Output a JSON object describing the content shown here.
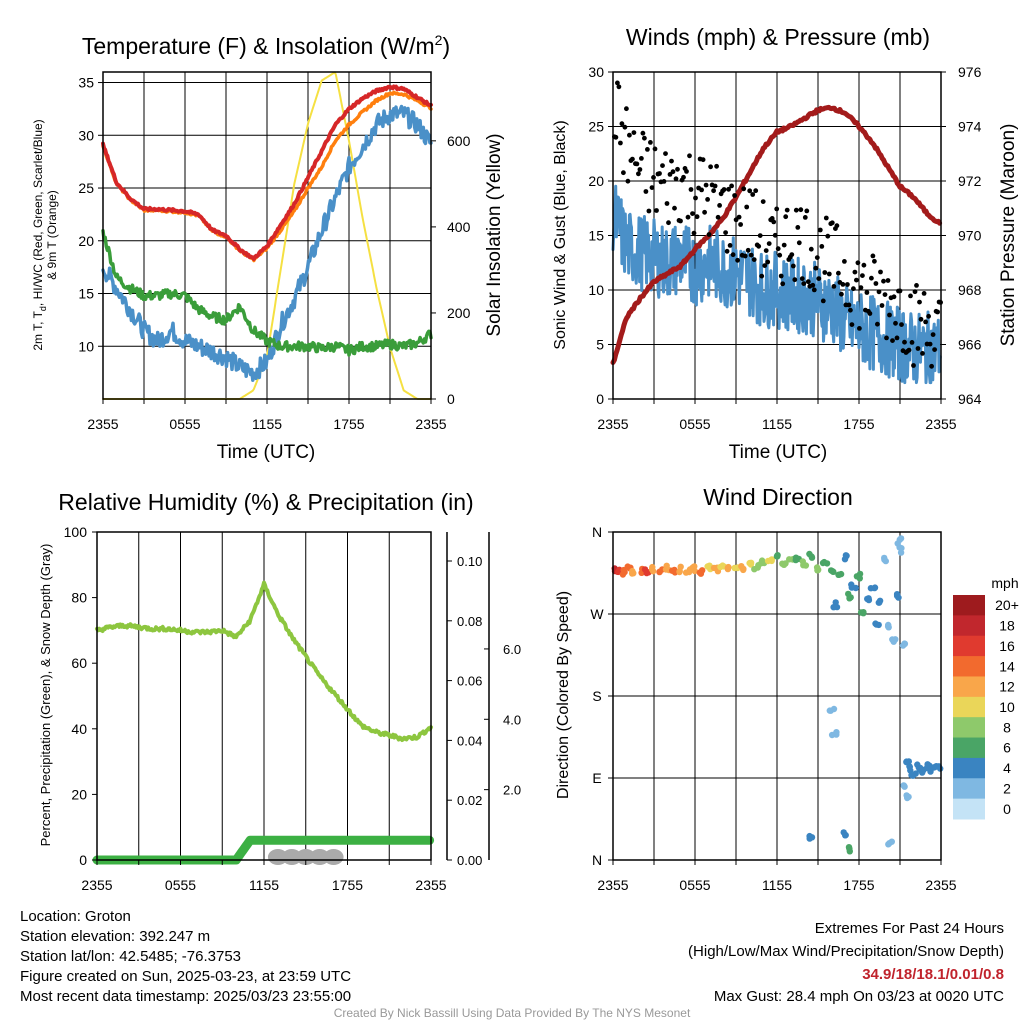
{
  "panels": {
    "temperature": {
      "title_main": "Temperature (F) & Insolation (W/m",
      "title_sup": "2",
      "title_end": ")",
      "ylabel_line1": "2m T, T",
      "ylabel_sub": "d",
      "ylabel_line1_end": ", HI/WC (Red, Green, Scarlet/Blue)",
      "ylabel_line2": "& 9m T (Orange)",
      "y2label": "Solar Insolation (Yellow)",
      "xlabel": "Time (UTC)"
    },
    "winds": {
      "title": "Winds (mph) & Pressure (mb)",
      "ylabel": "Sonic Wind & Gust (Blue, Black)",
      "y2label": "Station Pressure (Maroon)",
      "xlabel": "Time (UTC)"
    },
    "humidity": {
      "title": "Relative Humidity (%) & Precipitation (in)",
      "ylabel": "Percent, Precipitation (Green), & Snow Depth (Gray)"
    },
    "direction": {
      "title": "Wind Direction",
      "ylabel": "Direction (Colored By Speed)",
      "legend_title": "mph"
    }
  },
  "chart_data": [
    {
      "id": "temperature",
      "type": "line",
      "x_ticks": [
        "2355",
        "0555",
        "1155",
        "1755",
        "2355"
      ],
      "ylim": [
        5,
        36
      ],
      "y_ticks": [
        10,
        15,
        20,
        25,
        30,
        35
      ],
      "y2lim": [
        0,
        760
      ],
      "y2_ticks": [
        0,
        200,
        400,
        600
      ],
      "x": [
        0,
        1,
        2,
        3,
        4,
        5,
        6,
        7,
        8,
        9,
        10,
        11,
        12,
        13,
        14,
        15,
        16,
        17,
        18,
        19,
        20,
        21,
        22,
        23,
        24
      ],
      "series": [
        {
          "name": "2m T",
          "color": "#d62728",
          "axis": "left",
          "values": [
            29.1,
            25.5,
            24.0,
            23.0,
            23.0,
            22.9,
            22.8,
            22.5,
            21.0,
            20.5,
            19.2,
            18.3,
            19.5,
            21.5,
            23.5,
            26.0,
            28.5,
            31.0,
            32.5,
            33.5,
            34.2,
            34.6,
            34.4,
            33.6,
            32.8
          ]
        },
        {
          "name": "9m T",
          "color": "#ff7f0e",
          "axis": "left",
          "values": [
            29.0,
            25.4,
            23.9,
            22.9,
            22.9,
            22.8,
            22.7,
            22.4,
            20.9,
            20.4,
            19.1,
            18.2,
            19.3,
            21.0,
            22.8,
            25.0,
            27.0,
            29.5,
            31.0,
            32.2,
            33.3,
            34.0,
            33.9,
            33.3,
            32.6
          ]
        },
        {
          "name": "Td",
          "color": "#3a9d3a",
          "axis": "left",
          "values": [
            20.8,
            16.5,
            15.5,
            14.8,
            14.8,
            15.0,
            14.8,
            13.5,
            12.8,
            12.5,
            13.8,
            11.5,
            10.5,
            10.0,
            10.0,
            10.0,
            9.8,
            10.0,
            9.6,
            10.0,
            10.0,
            10.2,
            10.0,
            10.3,
            11.2
          ]
        },
        {
          "name": "WC",
          "color": "#4a90c8",
          "axis": "left",
          "values": [
            17.5,
            15.5,
            13.5,
            11.5,
            10.5,
            11.5,
            10.5,
            10.0,
            9.5,
            9.0,
            8.0,
            7.5,
            8.5,
            12.0,
            14.5,
            17.5,
            21.0,
            24.0,
            27.0,
            29.0,
            31.0,
            32.0,
            32.0,
            31.0,
            29.2
          ]
        },
        {
          "name": "Insolation",
          "color": "#f5e042",
          "axis": "right",
          "values": [
            0,
            0,
            0,
            0,
            0,
            0,
            0,
            0,
            0,
            0,
            0,
            20,
            100,
            300,
            500,
            640,
            740,
            760,
            600,
            420,
            260,
            120,
            20,
            0,
            0
          ]
        }
      ]
    },
    {
      "id": "winds",
      "type": "line",
      "x_ticks": [
        "2355",
        "0555",
        "1155",
        "1755",
        "2355"
      ],
      "ylim": [
        0,
        30
      ],
      "y_ticks": [
        0,
        5,
        10,
        15,
        20,
        25,
        30
      ],
      "y2lim": [
        964,
        976
      ],
      "y2_ticks": [
        964,
        966,
        968,
        970,
        972,
        974,
        976
      ],
      "x": [
        0,
        1,
        2,
        3,
        4,
        5,
        6,
        7,
        8,
        9,
        10,
        11,
        12,
        13,
        14,
        15,
        16,
        17,
        18,
        19,
        20,
        21,
        22,
        23,
        24
      ],
      "series": [
        {
          "name": "Sonic Wind",
          "color": "#4a90c8",
          "axis": "left",
          "values": [
            17.0,
            14.0,
            13.5,
            13.0,
            12.5,
            13.0,
            12.0,
            12.5,
            12.0,
            11.5,
            11.0,
            10.0,
            10.0,
            9.5,
            9.5,
            9.0,
            8.5,
            7.0,
            6.5,
            6.0,
            5.5,
            5.0,
            4.5,
            4.5,
            4.5
          ]
        },
        {
          "name": "Pressure",
          "color": "#a31b1b",
          "axis": "right",
          "values": [
            965.3,
            967.0,
            967.7,
            968.3,
            968.6,
            968.9,
            969.5,
            970.0,
            970.6,
            971.4,
            972.3,
            973.2,
            973.8,
            974.0,
            974.3,
            974.6,
            974.7,
            974.5,
            974.0,
            973.4,
            972.6,
            971.8,
            971.4,
            970.8,
            970.4
          ]
        },
        {
          "name": "Gust",
          "color": "#000000",
          "axis": "left",
          "scatter": true,
          "values": [
            27.5,
            23.0,
            21.0,
            20.0,
            19.5,
            20.0,
            19.0,
            18.5,
            17.5,
            16.0,
            16.0,
            14.5,
            13.5,
            15.0,
            14.5,
            13.0,
            12.5,
            11.5,
            10.0,
            9.5,
            9.0,
            8.5,
            7.0,
            6.5,
            6.0
          ]
        }
      ]
    },
    {
      "id": "humidity",
      "type": "line",
      "x_ticks": [
        "2355",
        "0555",
        "1155",
        "1755",
        "2355"
      ],
      "ylim": [
        0,
        100
      ],
      "y_ticks": [
        0,
        20,
        40,
        60,
        80,
        100
      ],
      "y2_ticks": [
        "0.00",
        "0.02",
        "0.04",
        "0.06",
        "0.08",
        "0.10"
      ],
      "y2lim": [
        0,
        0.1
      ],
      "y3_ticks": [
        "2.0",
        "4.0",
        "6.0"
      ],
      "x": [
        0,
        1,
        2,
        3,
        4,
        5,
        6,
        7,
        8,
        9,
        10,
        11,
        12,
        13,
        14,
        15,
        16,
        17,
        18,
        19,
        20,
        21,
        22,
        23,
        24
      ],
      "series": [
        {
          "name": "Relative Humidity",
          "color": "#8dc63f",
          "axis": "left",
          "values": [
            70.0,
            71.0,
            71.5,
            71.0,
            70.5,
            70.5,
            70.0,
            69.5,
            69.5,
            70.0,
            68.0,
            73.0,
            84.0,
            75.0,
            68.0,
            62.0,
            56.0,
            51.0,
            46.0,
            41.0,
            39.0,
            38.0,
            37.0,
            37.5,
            40.5
          ]
        },
        {
          "name": "Precipitation",
          "color": "#3cb043",
          "axis": "right",
          "values": [
            0,
            0,
            0,
            0,
            0,
            0,
            0,
            0,
            0,
            0,
            0,
            0.006,
            0.006,
            0.006,
            0.006,
            0.006,
            0.006,
            0.006,
            0.006,
            0.006,
            0.006,
            0.006,
            0.006,
            0.006,
            0.006
          ]
        },
        {
          "name": "Snow Depth",
          "color": "#aaaaaa",
          "axis": "right",
          "values": [
            null,
            null,
            null,
            null,
            null,
            null,
            null,
            null,
            null,
            null,
            null,
            null,
            null,
            0.0003,
            0.0003,
            0.0003,
            0.0003,
            0.0003,
            null,
            null,
            null,
            null,
            null,
            null,
            null
          ]
        }
      ]
    },
    {
      "id": "direction",
      "type": "scatter",
      "x_ticks": [
        "2355",
        "0555",
        "1155",
        "1755",
        "2355"
      ],
      "y_ticks": [
        "N",
        "W",
        "S",
        "E",
        "N"
      ],
      "y_values": [
        360,
        270,
        180,
        90,
        0
      ],
      "colorbar": {
        "labels": [
          "20+",
          "18",
          "16",
          "14",
          "12",
          "10",
          "8",
          "6",
          "4",
          "2",
          "0"
        ],
        "colors": [
          "#9e1b1e",
          "#c1272d",
          "#e03a2f",
          "#f26a2e",
          "#f9a64a",
          "#ead659",
          "#8ec96b",
          "#4aa566",
          "#3a84c1",
          "#7fb8e2",
          "#c4e3f6"
        ]
      },
      "points": [
        [
          0.2,
          317,
          18
        ],
        [
          0.5,
          318,
          16
        ],
        [
          0.8,
          316,
          14
        ],
        [
          1.2,
          320,
          14
        ],
        [
          1.5,
          317,
          12
        ],
        [
          2.0,
          318,
          14
        ],
        [
          2.5,
          316,
          16
        ],
        [
          3.0,
          319,
          12
        ],
        [
          3.5,
          317,
          14
        ],
        [
          4.0,
          320,
          12
        ],
        [
          4.5,
          318,
          14
        ],
        [
          5.0,
          319,
          12
        ],
        [
          5.5,
          317,
          12
        ],
        [
          6.0,
          320,
          12
        ],
        [
          6.5,
          316,
          14
        ],
        [
          7.0,
          321,
          10
        ],
        [
          7.5,
          318,
          12
        ],
        [
          8.0,
          322,
          10
        ],
        [
          8.5,
          320,
          12
        ],
        [
          9.0,
          323,
          10
        ],
        [
          9.5,
          321,
          12
        ],
        [
          10.0,
          325,
          10
        ],
        [
          10.5,
          322,
          8
        ],
        [
          11.0,
          328,
          8
        ],
        [
          11.5,
          330,
          10
        ],
        [
          12.0,
          333,
          6
        ],
        [
          12.5,
          325,
          8
        ],
        [
          13.0,
          328,
          8
        ],
        [
          13.5,
          330,
          6
        ],
        [
          14.0,
          326,
          8
        ],
        [
          14.5,
          333,
          6
        ],
        [
          15.0,
          320,
          8
        ],
        [
          15.5,
          328,
          6
        ],
        [
          16.0,
          318,
          6
        ],
        [
          16.3,
          280,
          4
        ],
        [
          16.6,
          315,
          6
        ],
        [
          17.0,
          333,
          4
        ],
        [
          17.3,
          290,
          6
        ],
        [
          17.6,
          300,
          4
        ],
        [
          18.0,
          312,
          6
        ],
        [
          18.3,
          270,
          6
        ],
        [
          18.6,
          285,
          4
        ],
        [
          19.0,
          300,
          4
        ],
        [
          19.3,
          260,
          4
        ],
        [
          19.6,
          282,
          4
        ],
        [
          20.0,
          255,
          2
        ],
        [
          20.5,
          240,
          2
        ],
        [
          20.8,
          290,
          4
        ],
        [
          21.0,
          340,
          2
        ],
        [
          21.2,
          235,
          2
        ],
        [
          21.5,
          110,
          4
        ],
        [
          21.8,
          100,
          4
        ],
        [
          22.0,
          95,
          4
        ],
        [
          22.3,
          102,
          4
        ],
        [
          22.6,
          98,
          4
        ],
        [
          23.0,
          103,
          4
        ],
        [
          23.4,
          100,
          4
        ],
        [
          23.8,
          102,
          4
        ],
        [
          21.3,
          80,
          2
        ],
        [
          21.6,
          70,
          2
        ],
        [
          14.5,
          25,
          4
        ],
        [
          17.0,
          30,
          4
        ],
        [
          17.2,
          12,
          6
        ],
        [
          20.3,
          18,
          2
        ],
        [
          16.0,
          165,
          2
        ],
        [
          16.2,
          140,
          2
        ],
        [
          21.0,
          350,
          2
        ],
        [
          19.8,
          330,
          2
        ]
      ]
    }
  ],
  "footer": {
    "location": "Location: Groton",
    "elevation": "Station elevation: 392.247 m",
    "latlon": "Station lat/lon: 42.5485; -76.3753",
    "created": "Figure created on Sun, 2025-03-23, at 23:59 UTC",
    "recent": "Most recent data timestamp: 2025/03/23 23:55:00",
    "extremes_title": "Extremes For Past 24 Hours",
    "extremes_subtitle": "(High/Low/Max Wind/Precipitation/Snow Depth)",
    "extremes_values": "34.9/18/18.1/0.01/0.8",
    "max_gust": "Max Gust: 28.4 mph On 03/23 at 0020 UTC",
    "credit": "Created By Nick Bassill Using Data Provided By The NYS Mesonet"
  }
}
